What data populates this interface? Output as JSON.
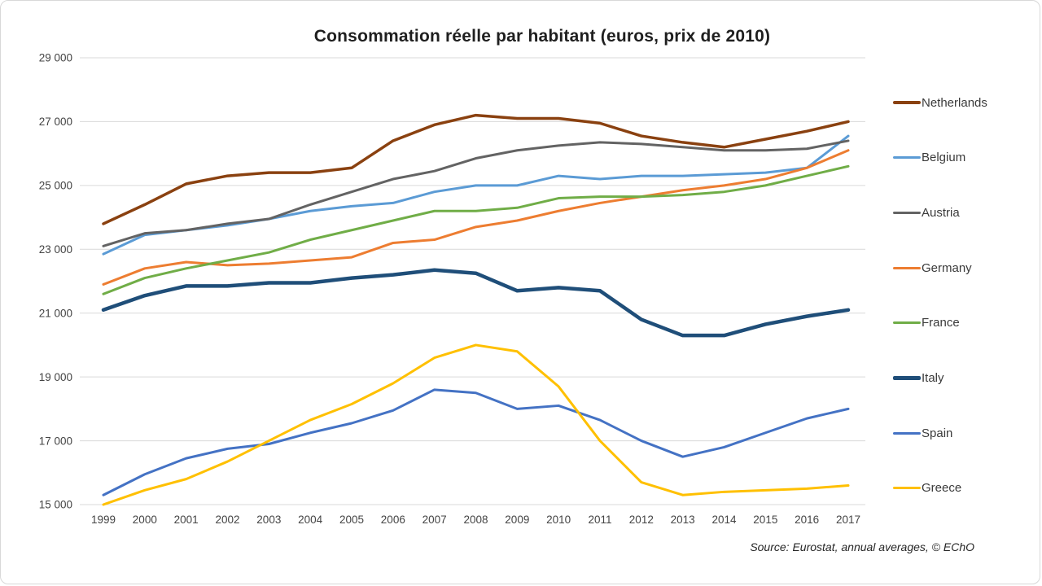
{
  "chart_data": {
    "type": "line",
    "title": "Consommation réelle par habitant (euros, prix de 2010)",
    "source_note": "Source: Eurostat, annual averages, © EChO",
    "x": [
      1999,
      2000,
      2001,
      2002,
      2003,
      2004,
      2005,
      2006,
      2007,
      2008,
      2009,
      2010,
      2011,
      2012,
      2013,
      2014,
      2015,
      2016,
      2017
    ],
    "ylim": [
      15000,
      29000
    ],
    "y_ticks": [
      15000,
      17000,
      19000,
      21000,
      23000,
      25000,
      27000,
      29000
    ],
    "y_tick_labels": [
      "15 000",
      "17 000",
      "19 000",
      "21 000",
      "23 000",
      "25 000",
      "27 000",
      "29 000"
    ],
    "grid": true,
    "gridline_color": "#D9D9D9",
    "legend_position": "right",
    "series": [
      {
        "name": "Netherlands",
        "color": "#8A4110",
        "line_width": 3.5,
        "values": [
          23800,
          24400,
          25050,
          25300,
          25400,
          25400,
          25550,
          26400,
          26900,
          27200,
          27100,
          27100,
          26950,
          26550,
          26350,
          26200,
          26450,
          26700,
          27000
        ]
      },
      {
        "name": "Belgium",
        "color": "#5B9BD5",
        "line_width": 3,
        "values": [
          22850,
          23450,
          23600,
          23750,
          23950,
          24200,
          24350,
          24450,
          24800,
          25000,
          25000,
          25300,
          25200,
          25300,
          25300,
          25350,
          25400,
          25550,
          26550
        ]
      },
      {
        "name": "Austria",
        "color": "#636363",
        "line_width": 3,
        "values": [
          23100,
          23500,
          23600,
          23800,
          23950,
          24400,
          24800,
          25200,
          25450,
          25850,
          26100,
          26250,
          26350,
          26300,
          26200,
          26100,
          26100,
          26150,
          26400
        ]
      },
      {
        "name": "Germany",
        "color": "#ED7D31",
        "line_width": 3,
        "values": [
          21900,
          22400,
          22600,
          22500,
          22550,
          22650,
          22750,
          23200,
          23300,
          23700,
          23900,
          24200,
          24450,
          24650,
          24850,
          25000,
          25200,
          25550,
          26100
        ]
      },
      {
        "name": "France",
        "color": "#70AD47",
        "line_width": 3,
        "values": [
          21600,
          22100,
          22400,
          22650,
          22900,
          23300,
          23600,
          23900,
          24200,
          24200,
          24300,
          24600,
          24650,
          24650,
          24700,
          24800,
          25000,
          25300,
          25600
        ]
      },
      {
        "name": "Italy",
        "color": "#1F4E79",
        "line_width": 4.5,
        "values": [
          21100,
          21550,
          21850,
          21850,
          21950,
          21950,
          22100,
          22200,
          22350,
          22250,
          21700,
          21800,
          21700,
          20800,
          20300,
          20300,
          20650,
          20900,
          21100
        ]
      },
      {
        "name": "Spain",
        "color": "#4472C4",
        "line_width": 3,
        "values": [
          15300,
          15950,
          16450,
          16750,
          16900,
          17250,
          17550,
          17950,
          18600,
          18500,
          18000,
          18100,
          17650,
          17000,
          16500,
          16800,
          17250,
          17700,
          18000
        ]
      },
      {
        "name": "Greece",
        "color": "#FFC000",
        "line_width": 3,
        "values": [
          15000,
          15450,
          15800,
          16350,
          17000,
          17650,
          18150,
          18800,
          19600,
          20000,
          19800,
          18700,
          17000,
          15700,
          15300,
          15400,
          15450,
          15500,
          15600
        ]
      }
    ]
  }
}
